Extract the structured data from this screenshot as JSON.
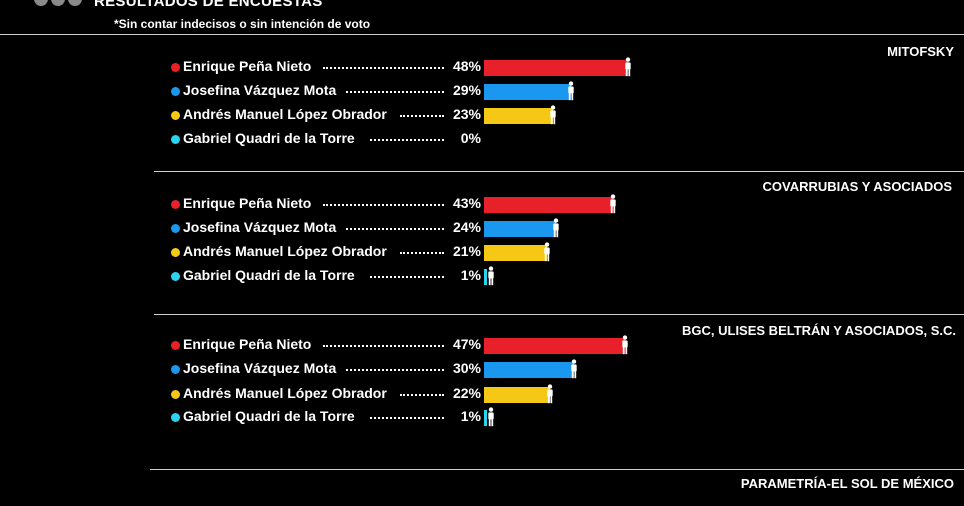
{
  "header": {
    "title": "RESULTADOS DE ENCUESTAS",
    "note": "*Sin contar indecisos o sin intención de voto"
  },
  "icons": {
    "legend": "person-icon",
    "logo": "three-dots-logo"
  },
  "colors": {
    "background": "#000000",
    "Enrique Peña Nieto": "#e8202a",
    "Josefina Vázquez Mota": "#1a98ef",
    "Andrés Manuel López Obrador": "#f5c816",
    "Gabriel Quadri de la Torre": "#2ad4ee"
  },
  "chart_data": {
    "type": "bar",
    "orientation": "horizontal",
    "categories": [
      "Enrique Peña Nieto",
      "Josefina Vázquez Mota",
      "Andrés Manuel López Obrador",
      "Gabriel Quadri de la Torre"
    ],
    "value_unit": "%",
    "pollsters": [
      {
        "name": "MITOFSKY",
        "values": [
          48,
          29,
          23,
          0
        ],
        "labels": [
          "48%",
          "29%",
          "23%",
          "0%"
        ]
      },
      {
        "name": "COVARRUBIAS Y ASOCIADOS",
        "values": [
          43,
          24,
          21,
          1
        ],
        "labels": [
          "43%",
          "24%",
          "21%",
          "1%"
        ]
      },
      {
        "name": "BGC, ULISES BELTRÁN Y ASOCIADOS, S.C.",
        "values": [
          47,
          30,
          22,
          1
        ],
        "labels": [
          "47%",
          "30%",
          "22%",
          "1%"
        ]
      },
      {
        "name": "PARAMETRÍA-EL SOL DE MÉXICO",
        "values": [],
        "labels": []
      }
    ]
  }
}
